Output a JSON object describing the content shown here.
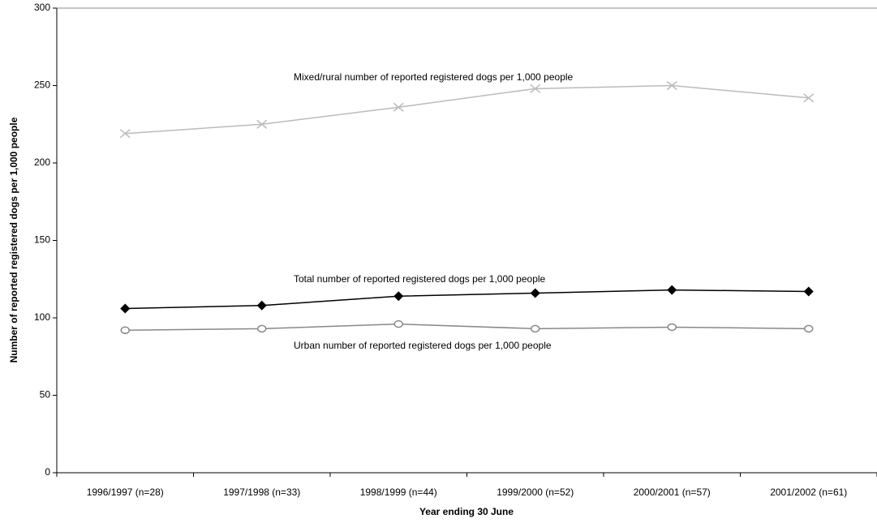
{
  "chart_data": {
    "type": "line",
    "y_label": "Number of reported registered dogs per 1,000 people",
    "x_label": "Year ending 30 June",
    "categories": [
      "1996/1997 (n=28)",
      "1997/1998 (n=33)",
      "1998/1999 (n=44)",
      "1999/2000 (n=52)",
      "2000/2001 (n=57)",
      "2001/2002 (n=61)"
    ],
    "series": [
      {
        "name": "Mixed/rural number of reported registered dogs per 1,000 people",
        "color": "#bbbbbb",
        "marker": "x",
        "values": [
          219,
          225,
          236,
          248,
          250,
          242
        ]
      },
      {
        "name": "Total number of reported registered dogs per 1,000 people",
        "color": "#000000",
        "marker": "diamond",
        "values": [
          106,
          108,
          114,
          116,
          118,
          117
        ]
      },
      {
        "name": "Urban number of reported registered dogs per 1,000 people",
        "color": "#888888",
        "marker": "circle",
        "values": [
          92,
          93,
          96,
          93,
          94,
          93
        ]
      }
    ],
    "ylim": [
      0,
      300
    ],
    "yticks": [
      0,
      50,
      100,
      150,
      200,
      250,
      300
    ],
    "grid": false
  }
}
